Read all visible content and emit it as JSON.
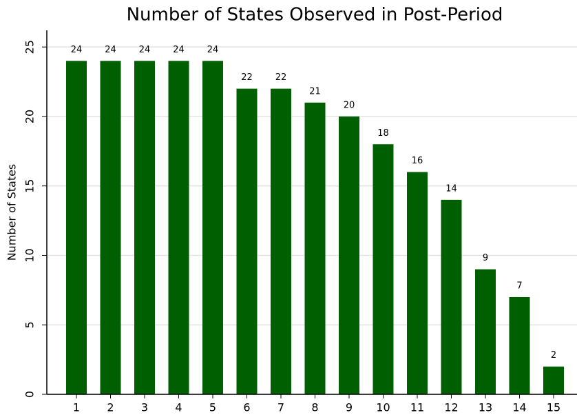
{
  "chart_data": {
    "type": "bar",
    "title": "Number of States Observed in Post-Period",
    "y_label": "Number of States",
    "categories": [
      "1",
      "2",
      "3",
      "4",
      "5",
      "6",
      "7",
      "8",
      "9",
      "10",
      "11",
      "12",
      "13",
      "14",
      "15"
    ],
    "values": [
      24,
      24,
      24,
      24,
      24,
      22,
      22,
      21,
      20,
      18,
      16,
      14,
      9,
      7,
      2
    ],
    "color": "#005f00",
    "ylim": [
      0,
      26.2
    ],
    "yticks": [
      0,
      5,
      10,
      15,
      20,
      25
    ],
    "grid": true
  }
}
